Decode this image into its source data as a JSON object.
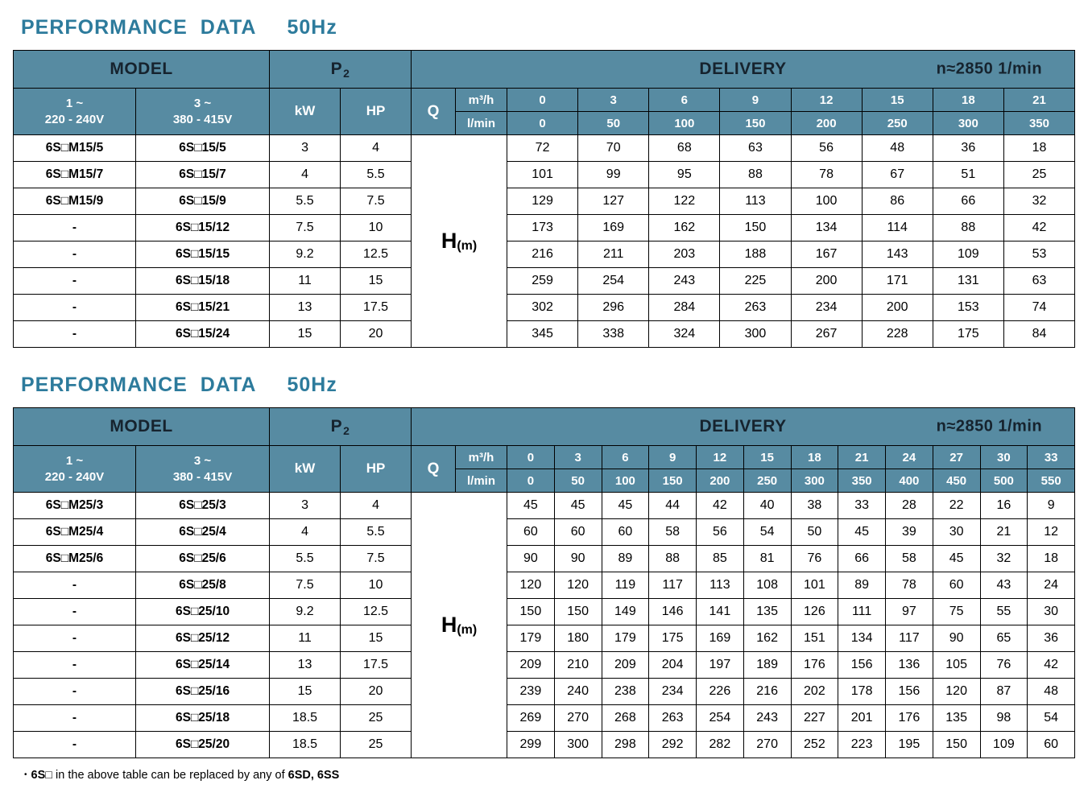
{
  "colors": {
    "header_bg": "#578ba2",
    "title": "#2d7b9c",
    "header_dark_text": "#16232e"
  },
  "footnote": {
    "bullet": "•",
    "model": "6S□",
    "text": " in the above table can be replaced by any of ",
    "bold": "6SD, 6SS"
  },
  "tables": [
    {
      "title": "PERFORMANCE  DATA",
      "freq": "50Hz",
      "header": {
        "model": "MODEL",
        "p2_main": "P",
        "p2_sub": "2",
        "delivery": "DELIVERY",
        "speed": "n≈2850 1/min",
        "voltage1_line1": "1 ~",
        "voltage1_line2": "220 - 240V",
        "voltage2_line1": "3 ~",
        "voltage2_line2": "380 - 415V",
        "kw": "kW",
        "hp": "HP",
        "q": "Q",
        "m3h": "m³/h",
        "lmin": "l/min",
        "h_main": "H",
        "h_sub": "(m)"
      },
      "flow_m3h": [
        "0",
        "3",
        "6",
        "9",
        "12",
        "15",
        "18",
        "21"
      ],
      "flow_lmin": [
        "0",
        "50",
        "100",
        "150",
        "200",
        "250",
        "300",
        "350"
      ],
      "rows": [
        {
          "model_1ph": "6S□M15/5",
          "model_3ph": "6S□15/5",
          "kw": "3",
          "hp": "4",
          "head": [
            "72",
            "70",
            "68",
            "63",
            "56",
            "48",
            "36",
            "18"
          ]
        },
        {
          "model_1ph": "6S□M15/7",
          "model_3ph": "6S□15/7",
          "kw": "4",
          "hp": "5.5",
          "head": [
            "101",
            "99",
            "95",
            "88",
            "78",
            "67",
            "51",
            "25"
          ]
        },
        {
          "model_1ph": "6S□M15/9",
          "model_3ph": "6S□15/9",
          "kw": "5.5",
          "hp": "7.5",
          "head": [
            "129",
            "127",
            "122",
            "113",
            "100",
            "86",
            "66",
            "32"
          ]
        },
        {
          "model_1ph": "-",
          "model_3ph": "6S□15/12",
          "kw": "7.5",
          "hp": "10",
          "head": [
            "173",
            "169",
            "162",
            "150",
            "134",
            "114",
            "88",
            "42"
          ]
        },
        {
          "model_1ph": "-",
          "model_3ph": "6S□15/15",
          "kw": "9.2",
          "hp": "12.5",
          "head": [
            "216",
            "211",
            "203",
            "188",
            "167",
            "143",
            "109",
            "53"
          ]
        },
        {
          "model_1ph": "-",
          "model_3ph": "6S□15/18",
          "kw": "11",
          "hp": "15",
          "head": [
            "259",
            "254",
            "243",
            "225",
            "200",
            "171",
            "131",
            "63"
          ]
        },
        {
          "model_1ph": "-",
          "model_3ph": "6S□15/21",
          "kw": "13",
          "hp": "17.5",
          "head": [
            "302",
            "296",
            "284",
            "263",
            "234",
            "200",
            "153",
            "74"
          ]
        },
        {
          "model_1ph": "-",
          "model_3ph": "6S□15/24",
          "kw": "15",
          "hp": "20",
          "head": [
            "345",
            "338",
            "324",
            "300",
            "267",
            "228",
            "175",
            "84"
          ]
        }
      ]
    },
    {
      "title": "PERFORMANCE  DATA",
      "freq": "50Hz",
      "header": {
        "model": "MODEL",
        "p2_main": "P",
        "p2_sub": "2",
        "delivery": "DELIVERY",
        "speed": "n≈2850 1/min",
        "voltage1_line1": "1 ~",
        "voltage1_line2": "220 - 240V",
        "voltage2_line1": "3 ~",
        "voltage2_line2": "380 - 415V",
        "kw": "kW",
        "hp": "HP",
        "q": "Q",
        "m3h": "m³/h",
        "lmin": "l/min",
        "h_main": "H",
        "h_sub": "(m)"
      },
      "flow_m3h": [
        "0",
        "3",
        "6",
        "9",
        "12",
        "15",
        "18",
        "21",
        "24",
        "27",
        "30",
        "33"
      ],
      "flow_lmin": [
        "0",
        "50",
        "100",
        "150",
        "200",
        "250",
        "300",
        "350",
        "400",
        "450",
        "500",
        "550"
      ],
      "rows": [
        {
          "model_1ph": "6S□M25/3",
          "model_3ph": "6S□25/3",
          "kw": "3",
          "hp": "4",
          "head": [
            "45",
            "45",
            "45",
            "44",
            "42",
            "40",
            "38",
            "33",
            "28",
            "22",
            "16",
            "9"
          ]
        },
        {
          "model_1ph": "6S□M25/4",
          "model_3ph": "6S□25/4",
          "kw": "4",
          "hp": "5.5",
          "head": [
            "60",
            "60",
            "60",
            "58",
            "56",
            "54",
            "50",
            "45",
            "39",
            "30",
            "21",
            "12"
          ]
        },
        {
          "model_1ph": "6S□M25/6",
          "model_3ph": "6S□25/6",
          "kw": "5.5",
          "hp": "7.5",
          "head": [
            "90",
            "90",
            "89",
            "88",
            "85",
            "81",
            "76",
            "66",
            "58",
            "45",
            "32",
            "18"
          ]
        },
        {
          "model_1ph": "-",
          "model_3ph": "6S□25/8",
          "kw": "7.5",
          "hp": "10",
          "head": [
            "120",
            "120",
            "119",
            "117",
            "113",
            "108",
            "101",
            "89",
            "78",
            "60",
            "43",
            "24"
          ]
        },
        {
          "model_1ph": "-",
          "model_3ph": "6S□25/10",
          "kw": "9.2",
          "hp": "12.5",
          "head": [
            "150",
            "150",
            "149",
            "146",
            "141",
            "135",
            "126",
            "111",
            "97",
            "75",
            "55",
            "30"
          ]
        },
        {
          "model_1ph": "-",
          "model_3ph": "6S□25/12",
          "kw": "11",
          "hp": "15",
          "head": [
            "179",
            "180",
            "179",
            "175",
            "169",
            "162",
            "151",
            "134",
            "117",
            "90",
            "65",
            "36"
          ]
        },
        {
          "model_1ph": "-",
          "model_3ph": "6S□25/14",
          "kw": "13",
          "hp": "17.5",
          "head": [
            "209",
            "210",
            "209",
            "204",
            "197",
            "189",
            "176",
            "156",
            "136",
            "105",
            "76",
            "42"
          ]
        },
        {
          "model_1ph": "-",
          "model_3ph": "6S□25/16",
          "kw": "15",
          "hp": "20",
          "head": [
            "239",
            "240",
            "238",
            "234",
            "226",
            "216",
            "202",
            "178",
            "156",
            "120",
            "87",
            "48"
          ]
        },
        {
          "model_1ph": "-",
          "model_3ph": "6S□25/18",
          "kw": "18.5",
          "hp": "25",
          "head": [
            "269",
            "270",
            "268",
            "263",
            "254",
            "243",
            "227",
            "201",
            "176",
            "135",
            "98",
            "54"
          ]
        },
        {
          "model_1ph": "-",
          "model_3ph": "6S□25/20",
          "kw": "18.5",
          "hp": "25",
          "head": [
            "299",
            "300",
            "298",
            "292",
            "282",
            "270",
            "252",
            "223",
            "195",
            "150",
            "109",
            "60"
          ]
        }
      ]
    }
  ]
}
